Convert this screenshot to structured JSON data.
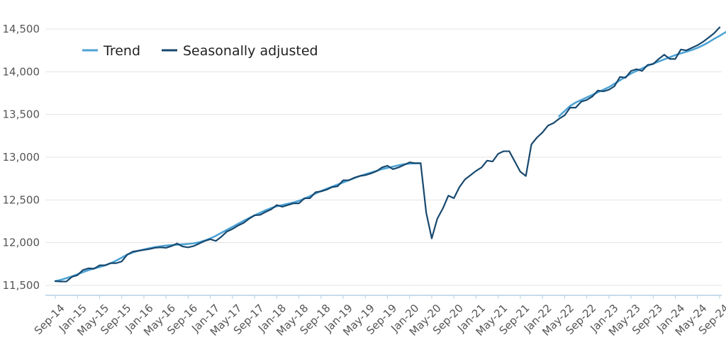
{
  "chart_data": {
    "type": "line",
    "title": "",
    "xlabel": "",
    "ylabel": "",
    "ylim": [
      11500,
      14500
    ],
    "y_ticks": [
      "11,500",
      "12,000",
      "12,500",
      "13,000",
      "13,500",
      "14,000",
      "14,500"
    ],
    "y_tick_values": [
      11500,
      12000,
      12500,
      13000,
      13500,
      14000,
      14500
    ],
    "x_tick_labels": [
      "Sep-14",
      "Jan-15",
      "May-15",
      "Sep-15",
      "Jan-16",
      "May-16",
      "Sep-16",
      "Jan-17",
      "May-17",
      "Sep-17",
      "Jan-18",
      "May-18",
      "Sep-18",
      "Jan-19",
      "May-19",
      "Sep-19",
      "Jan-20",
      "May-20",
      "Sep-20",
      "Jan-21",
      "May-21",
      "Sep-21",
      "Jan-22",
      "May-22",
      "Sep-22",
      "Jan-23",
      "May-23",
      "Sep-23",
      "Jan-24",
      "May-24",
      "Sep-24"
    ],
    "x_tick_index": [
      0,
      4,
      8,
      12,
      16,
      20,
      24,
      28,
      32,
      36,
      40,
      44,
      48,
      52,
      56,
      60,
      64,
      68,
      72,
      76,
      80,
      84,
      88,
      92,
      96,
      100,
      104,
      108,
      112,
      116,
      120
    ],
    "grid": "horizontal",
    "legend_position": "top-left",
    "series": [
      {
        "name": "Trend",
        "color": "#4da3d4",
        "values": [
          11550,
          11565,
          11585,
          11605,
          11630,
          11655,
          11678,
          11698,
          11715,
          11735,
          11760,
          11790,
          11825,
          11860,
          11885,
          11905,
          11920,
          11935,
          11948,
          11958,
          11966,
          11972,
          11976,
          11980,
          11985,
          11992,
          12005,
          12025,
          12050,
          12080,
          12115,
          12150,
          12185,
          12220,
          12255,
          12288,
          12320,
          12350,
          12380,
          12405,
          12425,
          12440,
          12455,
          12470,
          12490,
          12515,
          12545,
          12575,
          12605,
          12630,
          12655,
          12680,
          12705,
          12730,
          12755,
          12780,
          12800,
          12820,
          12840,
          12860,
          12875,
          12890,
          12905,
          12918,
          12925,
          12928,
          12930,
          null,
          null,
          null,
          null,
          null,
          null,
          null,
          null,
          null,
          null,
          null,
          null,
          null,
          null,
          null,
          null,
          null,
          null,
          null,
          null,
          null,
          null,
          null,
          null,
          13480,
          13540,
          13600,
          13640,
          13670,
          13700,
          13730,
          13760,
          13790,
          13820,
          13860,
          13900,
          13940,
          13980,
          14010,
          14040,
          14070,
          14095,
          14120,
          14145,
          14170,
          14195,
          14215,
          14235,
          14255,
          14280,
          14310,
          14345,
          14385,
          14420,
          14460,
          14500
        ]
      },
      {
        "name": "Seasonally adjusted",
        "color": "#17486e",
        "values": [
          11550,
          11545,
          11545,
          11600,
          11620,
          11680,
          11700,
          11695,
          11735,
          11735,
          11760,
          11760,
          11780,
          11860,
          11895,
          11905,
          11915,
          11925,
          11940,
          11945,
          11940,
          11960,
          11990,
          11955,
          11945,
          11960,
          11990,
          12020,
          12040,
          12020,
          12070,
          12130,
          12160,
          12200,
          12230,
          12280,
          12320,
          12325,
          12360,
          12390,
          12440,
          12420,
          12440,
          12460,
          12460,
          12520,
          12520,
          12590,
          12600,
          12620,
          12650,
          12660,
          12730,
          12730,
          12760,
          12780,
          12790,
          12810,
          12835,
          12880,
          12900,
          12860,
          12880,
          12910,
          12940,
          12930,
          12930,
          12350,
          12050,
          12280,
          12400,
          12550,
          12520,
          12650,
          12740,
          12790,
          12840,
          12880,
          12960,
          12950,
          13040,
          13070,
          13070,
          12950,
          12830,
          12780,
          13150,
          13230,
          13290,
          13370,
          13400,
          13450,
          13490,
          13580,
          13580,
          13650,
          13670,
          13710,
          13780,
          13770,
          13790,
          13830,
          13940,
          13930,
          14010,
          14030,
          14010,
          14080,
          14090,
          14150,
          14200,
          14150,
          14150,
          14260,
          14250,
          14280,
          14310,
          14350,
          14400,
          14450,
          14520
        ]
      }
    ]
  }
}
